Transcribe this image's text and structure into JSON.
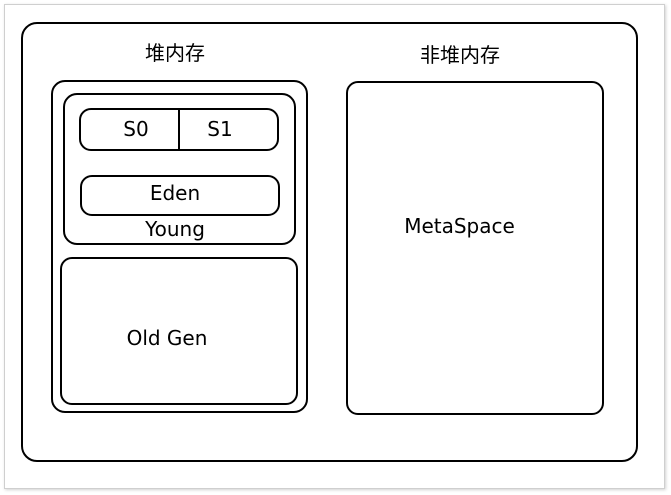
{
  "heap": {
    "title": "堆内存",
    "young": {
      "label": "Young",
      "survivor": {
        "s0": "S0",
        "s1": "S1"
      },
      "eden": "Eden"
    },
    "old_gen": "Old Gen"
  },
  "non_heap": {
    "title": "非堆内存",
    "metaspace": "MetaSpace"
  }
}
